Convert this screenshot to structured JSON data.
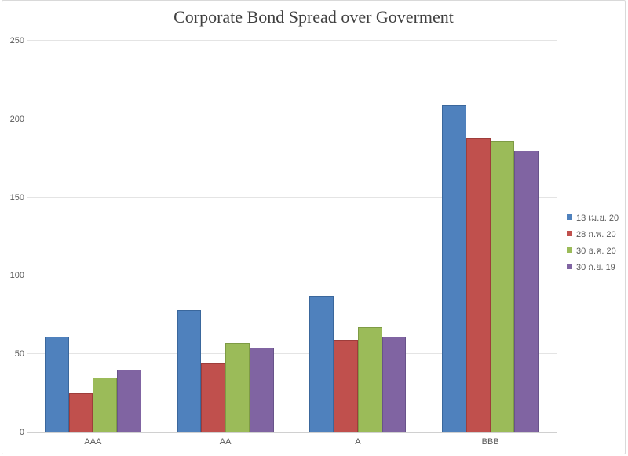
{
  "chart_data": {
    "type": "bar",
    "title": "Corporate Bond Spread over Goverment",
    "categories": [
      "AAA",
      "AA",
      "A",
      "BBB"
    ],
    "series": [
      {
        "name": "13 เม.ย. 20",
        "color": "#4F81BD",
        "border_color": "#3A679C",
        "values": [
          61,
          78,
          87,
          209
        ]
      },
      {
        "name": "28 ก.พ. 20",
        "color": "#C0504D",
        "border_color": "#9E3D3B",
        "values": [
          25,
          44,
          59,
          188
        ]
      },
      {
        "name": "30 ธ.ค. 20",
        "color": "#9BBB59",
        "border_color": "#7E9B45",
        "values": [
          35,
          57,
          67,
          186
        ]
      },
      {
        "name": "30 ก.ย. 19",
        "color": "#8064A2",
        "border_color": "#68538A",
        "values": [
          40,
          54,
          61,
          180
        ]
      }
    ],
    "ylim": [
      0,
      250
    ],
    "ytick_step": 50,
    "ytick_labels": [
      "0",
      "50",
      "100",
      "150",
      "200",
      "250"
    ],
    "grid": true,
    "legend_position": "right",
    "xlabel": "",
    "ylabel": ""
  },
  "style": {
    "background": "#FFFFFF",
    "frame_border": "#D9D9D9",
    "grid_color": "#E4E4E4",
    "axis_line_color": "#D0D0D0",
    "title_color": "#404040",
    "tick_text_color": "#595959"
  }
}
